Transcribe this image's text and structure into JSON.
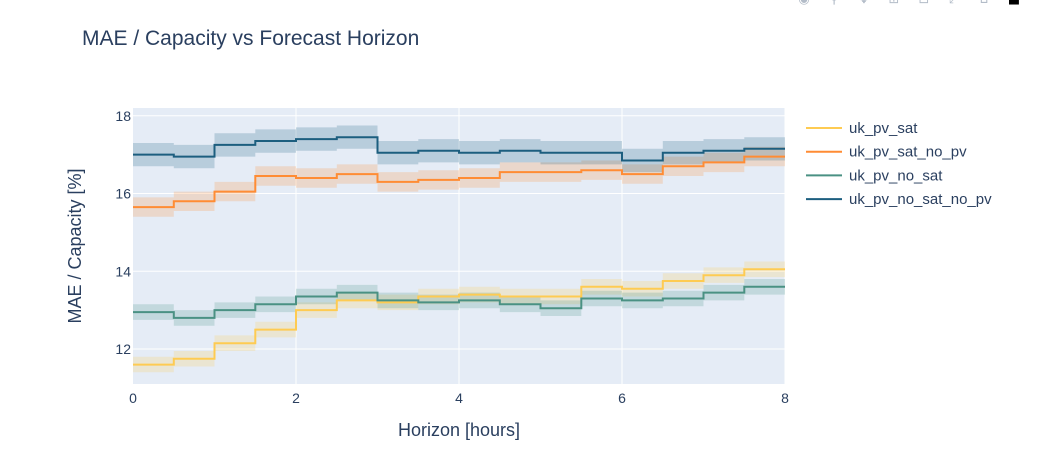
{
  "chart_data": {
    "type": "line",
    "line_shape": "step",
    "title": "MAE / Capacity vs Forecast Horizon",
    "xlabel": "Horizon [hours]",
    "ylabel": "MAE / Capacity [%]",
    "xlim": [
      0,
      8
    ],
    "ylim": [
      11.1,
      18.2
    ],
    "xticks": [
      0,
      2,
      4,
      6,
      8
    ],
    "yticks": [
      12,
      14,
      16,
      18
    ],
    "grid": true,
    "legend_position": "right",
    "x": [
      0,
      0.5,
      1,
      1.5,
      2,
      2.5,
      3,
      3.5,
      4,
      4.5,
      5,
      5.5,
      6,
      6.5,
      7,
      7.5,
      8
    ],
    "series": [
      {
        "name": "uk_pv_sat",
        "color": "#fecb52",
        "values": [
          11.6,
          11.75,
          12.15,
          12.5,
          13.0,
          13.25,
          13.2,
          13.35,
          13.4,
          13.35,
          13.35,
          13.6,
          13.55,
          13.75,
          13.9,
          14.05,
          14.05
        ],
        "band": 0.2
      },
      {
        "name": "uk_pv_sat_no_pv",
        "color": "#ff8c34",
        "values": [
          15.65,
          15.8,
          16.05,
          16.45,
          16.4,
          16.5,
          16.3,
          16.35,
          16.4,
          16.55,
          16.55,
          16.6,
          16.5,
          16.7,
          16.8,
          16.95,
          16.95
        ],
        "band": 0.25
      },
      {
        "name": "uk_pv_no_sat",
        "color": "#4a9183",
        "values": [
          12.95,
          12.8,
          13.0,
          13.15,
          13.35,
          13.45,
          13.25,
          13.2,
          13.25,
          13.15,
          13.05,
          13.3,
          13.25,
          13.3,
          13.45,
          13.6,
          13.6
        ],
        "band": 0.2
      },
      {
        "name": "uk_pv_no_sat_no_pv",
        "color": "#1c5e7f",
        "values": [
          17.0,
          16.95,
          17.25,
          17.35,
          17.4,
          17.45,
          17.05,
          17.1,
          17.05,
          17.1,
          17.05,
          17.05,
          16.85,
          17.05,
          17.1,
          17.15,
          17.15
        ],
        "band": 0.3
      }
    ]
  },
  "modebar": {
    "icons": [
      "camera-icon",
      "zoom-icon",
      "pan-icon",
      "zoom-in-icon",
      "zoom-out-icon",
      "autoscale-icon",
      "home-icon",
      "plotly-logo-icon"
    ]
  }
}
